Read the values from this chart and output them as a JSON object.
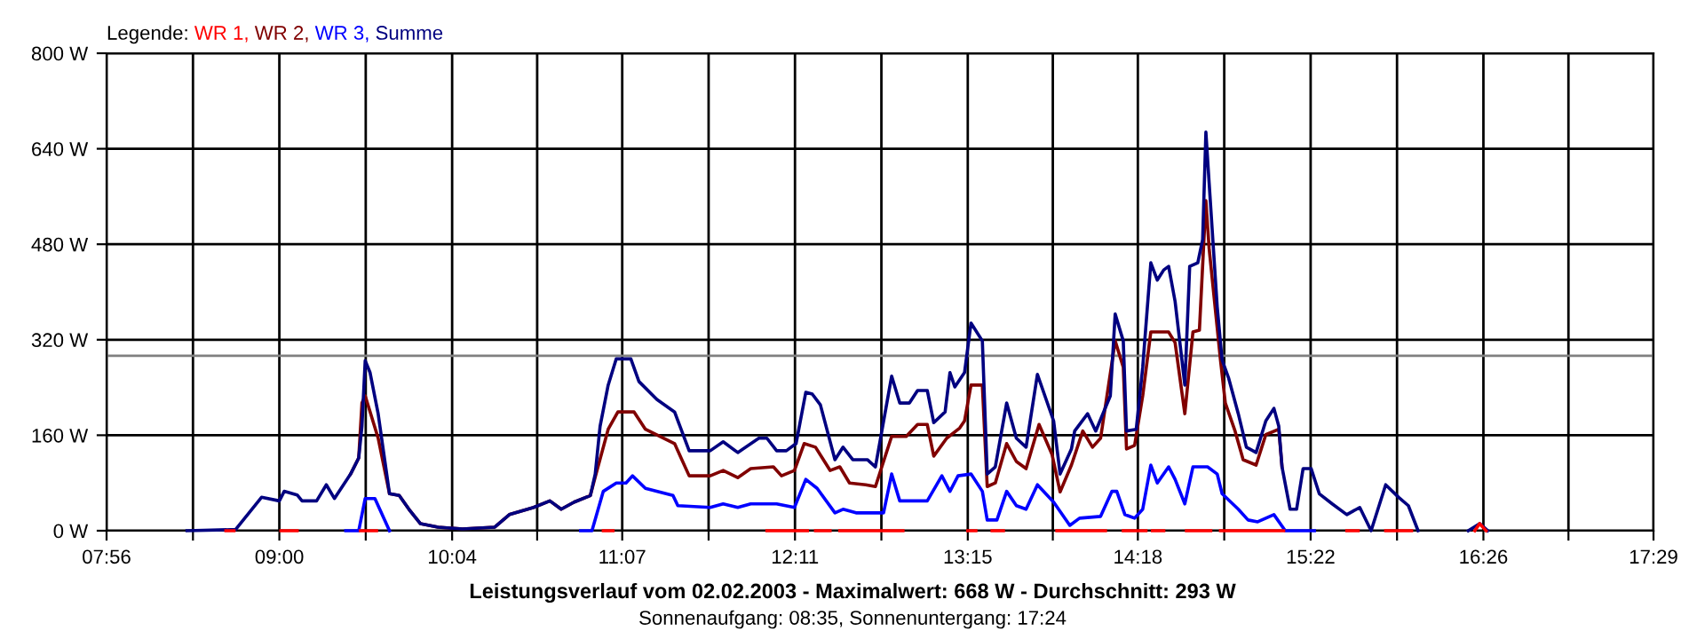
{
  "chart_data": {
    "type": "line",
    "title": "Leistungsverlauf vom 02.02.2003 - Maximalwert: 668 W - Durchschnitt: 293 W",
    "subtitle": "Sonnenaufgang: 08:35, Sonnenuntergang: 17:24",
    "legend_title": "Legende:",
    "legend": "top left",
    "grid": true,
    "marker": "none",
    "line_style": "solid",
    "xlim": [
      7.9333,
      17.4833
    ],
    "ylim": [
      0,
      800
    ],
    "xticks": [
      {
        "value": 7.9333,
        "label": "07:56"
      },
      {
        "value": 8.4667,
        "label": null
      },
      {
        "value": 9.0,
        "label": "09:00"
      },
      {
        "value": 9.5333,
        "label": null
      },
      {
        "value": 10.0667,
        "label": "10:04"
      },
      {
        "value": 10.5917,
        "label": null
      },
      {
        "value": 11.1167,
        "label": "11:07"
      },
      {
        "value": 11.65,
        "label": null
      },
      {
        "value": 12.1833,
        "label": "12:11"
      },
      {
        "value": 12.7167,
        "label": null
      },
      {
        "value": 13.25,
        "label": "13:15"
      },
      {
        "value": 13.775,
        "label": null
      },
      {
        "value": 14.3,
        "label": "14:18"
      },
      {
        "value": 14.8333,
        "label": null
      },
      {
        "value": 15.3667,
        "label": "15:22"
      },
      {
        "value": 15.9,
        "label": null
      },
      {
        "value": 16.4333,
        "label": "16:26"
      },
      {
        "value": 16.9583,
        "label": null
      },
      {
        "value": 17.4833,
        "label": "17:29"
      }
    ],
    "yticks": [
      {
        "value": 0,
        "label": "0 W"
      },
      {
        "value": 160,
        "label": "160 W"
      },
      {
        "value": 320,
        "label": "320 W"
      },
      {
        "value": 480,
        "label": "480 W"
      },
      {
        "value": 640,
        "label": "640 W"
      },
      {
        "value": 800,
        "label": "800 W"
      }
    ],
    "ref_lines": [
      {
        "axis": "y",
        "value": 293,
        "color": "#808080"
      }
    ],
    "series": [
      {
        "name": "WR 1,",
        "color": "#ff0000",
        "x": [
          8.67,
          8.72,
          null,
          9.01,
          9.11,
          null,
          9.5,
          9.6,
          null,
          11.0,
          11.06,
          null,
          12.01,
          12.26,
          null,
          12.31,
          12.4,
          null,
          12.46,
          12.85,
          null,
          13.25,
          13.3,
          null,
          13.4,
          13.47,
          null,
          13.8,
          14.1,
          null,
          14.21,
          14.35,
          null,
          14.39,
          14.46,
          null,
          14.6,
          14.75,
          null,
          14.81,
          15.2,
          null,
          15.59,
          15.66,
          null,
          15.83,
          15.99,
          null,
          16.38,
          16.41,
          16.45
        ],
        "values": [
          0,
          0,
          null,
          0,
          0,
          null,
          0,
          0,
          null,
          0,
          0,
          null,
          0,
          0,
          null,
          0,
          0,
          null,
          0,
          0,
          null,
          0,
          0,
          null,
          0,
          0,
          null,
          0,
          0,
          null,
          0,
          0,
          null,
          0,
          0,
          null,
          0,
          0,
          null,
          0,
          0,
          null,
          0,
          0,
          null,
          0,
          0,
          null,
          0,
          12,
          0
        ]
      },
      {
        "name": "WR 2,",
        "color": "#800000",
        "x": [
          9.44,
          9.49,
          9.51,
          9.53,
          9.61,
          9.68,
          9.74,
          9.8,
          9.87,
          9.98,
          10.13,
          10.33,
          10.42,
          10.57,
          10.67,
          10.74,
          10.82,
          10.92,
          10.95,
          11.03,
          11.09,
          11.19,
          11.26,
          11.44,
          11.53,
          11.66,
          11.74,
          11.83,
          11.91,
          12.05,
          12.1,
          12.18,
          12.24,
          12.31,
          12.4,
          12.46,
          12.52,
          12.62,
          12.68,
          12.78,
          12.87,
          12.94,
          13.0,
          13.04,
          13.12,
          13.2,
          13.23,
          13.27,
          13.34,
          13.37,
          13.42,
          13.49,
          13.55,
          13.61,
          13.69,
          13.77,
          13.82,
          13.89,
          13.96,
          14.02,
          14.07,
          14.16,
          14.21,
          14.23,
          14.28,
          14.33,
          14.38,
          14.49,
          14.53,
          14.59,
          14.64,
          14.68,
          14.72,
          14.74,
          14.81,
          14.84,
          14.9,
          14.95,
          15.03,
          15.09,
          15.17,
          15.19
        ],
        "values": [
          95,
          122,
          214,
          226,
          155,
          62,
          59,
          36,
          12,
          6,
          3,
          6,
          27,
          39,
          50,
          36,
          48,
          59,
          90,
          170,
          199,
          199,
          170,
          146,
          92,
          92,
          101,
          89,
          104,
          107,
          92,
          101,
          146,
          140,
          101,
          107,
          80,
          77,
          74,
          158,
          158,
          178,
          178,
          125,
          155,
          172,
          184,
          244,
          244,
          74,
          80,
          146,
          116,
          104,
          178,
          128,
          65,
          110,
          167,
          140,
          155,
          318,
          274,
          137,
          143,
          226,
          333,
          333,
          315,
          196,
          333,
          336,
          553,
          473,
          286,
          214,
          167,
          119,
          110,
          161,
          170,
          107
        ]
      },
      {
        "name": "WR 3,",
        "color": "#0000ff",
        "x": [
          9.41,
          9.49,
          9.53,
          9.59,
          9.68,
          null,
          10.86,
          10.93,
          11.0,
          11.08,
          11.14,
          11.18,
          11.26,
          11.43,
          11.46,
          11.66,
          11.74,
          11.83,
          11.91,
          12.07,
          12.18,
          12.25,
          12.32,
          12.43,
          12.48,
          12.56,
          12.73,
          12.78,
          12.83,
          13.0,
          13.09,
          13.14,
          13.19,
          13.27,
          13.34,
          13.37,
          13.43,
          13.49,
          13.55,
          13.61,
          13.68,
          13.78,
          13.88,
          13.94,
          14.07,
          14.14,
          14.17,
          14.22,
          14.28,
          14.33,
          14.38,
          14.42,
          14.49,
          14.53,
          14.59,
          14.64,
          14.73,
          14.79,
          14.82,
          14.92,
          14.98,
          15.04,
          15.14,
          15.21,
          15.39
        ],
        "values": [
          0,
          0,
          54,
          54,
          0,
          null,
          0,
          0,
          66,
          80,
          80,
          92,
          71,
          59,
          42,
          39,
          45,
          39,
          45,
          45,
          39,
          86,
          71,
          30,
          36,
          30,
          30,
          95,
          50,
          50,
          92,
          66,
          92,
          95,
          66,
          18,
          18,
          66,
          42,
          36,
          77,
          48,
          9,
          21,
          24,
          66,
          66,
          27,
          21,
          36,
          110,
          80,
          107,
          86,
          45,
          107,
          107,
          95,
          62,
          36,
          18,
          15,
          27,
          0,
          0
        ]
      },
      {
        "name": "Summe",
        "color": "#000080",
        "x": [
          8.43,
          8.73,
          8.89,
          9.0,
          9.03,
          9.11,
          9.14,
          9.23,
          9.29,
          9.34,
          9.44,
          9.49,
          9.51,
          9.53,
          9.56,
          9.61,
          9.68,
          9.74,
          9.8,
          9.87,
          9.98,
          10.13,
          10.33,
          10.42,
          10.57,
          10.67,
          10.74,
          10.82,
          10.92,
          10.95,
          10.98,
          11.03,
          11.08,
          11.17,
          11.22,
          11.33,
          11.44,
          11.53,
          11.66,
          11.74,
          11.83,
          11.96,
          12.01,
          12.07,
          12.13,
          12.19,
          12.25,
          12.29,
          12.34,
          12.43,
          12.48,
          12.54,
          12.63,
          12.68,
          12.78,
          12.83,
          12.89,
          12.94,
          13.0,
          13.04,
          13.11,
          13.14,
          13.17,
          13.23,
          13.27,
          13.34,
          13.37,
          13.42,
          13.49,
          13.55,
          13.61,
          13.68,
          13.78,
          13.82,
          13.89,
          13.91,
          13.99,
          14.04,
          14.13,
          14.16,
          14.21,
          14.23,
          14.29,
          14.33,
          14.38,
          14.42,
          14.46,
          14.49,
          14.53,
          14.59,
          14.62,
          14.67,
          14.7,
          14.72,
          14.74,
          14.79,
          14.82,
          14.86,
          14.92,
          14.97,
          15.03,
          15.09,
          15.14,
          15.17,
          15.19,
          15.24,
          15.28,
          15.32,
          15.37,
          15.42,
          15.5,
          15.59,
          15.67,
          15.74,
          15.83,
          15.91,
          15.97,
          16.03,
          null,
          16.34,
          16.41,
          16.46
        ],
        "values": [
          0,
          2,
          56,
          50,
          66,
          60,
          50,
          50,
          77,
          54,
          95,
          122,
          175,
          285,
          265,
          196,
          62,
          59,
          36,
          12,
          6,
          3,
          6,
          27,
          39,
          50,
          36,
          48,
          59,
          95,
          175,
          244,
          288,
          288,
          250,
          220,
          199,
          134,
          134,
          149,
          131,
          155,
          155,
          134,
          134,
          146,
          232,
          229,
          211,
          119,
          140,
          119,
          119,
          107,
          259,
          214,
          214,
          235,
          235,
          181,
          199,
          265,
          241,
          265,
          348,
          318,
          95,
          107,
          214,
          155,
          140,
          262,
          184,
          95,
          137,
          167,
          196,
          167,
          226,
          363,
          318,
          167,
          170,
          274,
          449,
          420,
          437,
          443,
          384,
          244,
          443,
          449,
          488,
          668,
          583,
          375,
          286,
          256,
          196,
          140,
          131,
          184,
          205,
          175,
          107,
          36,
          36,
          104,
          104,
          62,
          45,
          27,
          39,
          0,
          77,
          56,
          42,
          0,
          null,
          0,
          12,
          0
        ]
      }
    ]
  }
}
